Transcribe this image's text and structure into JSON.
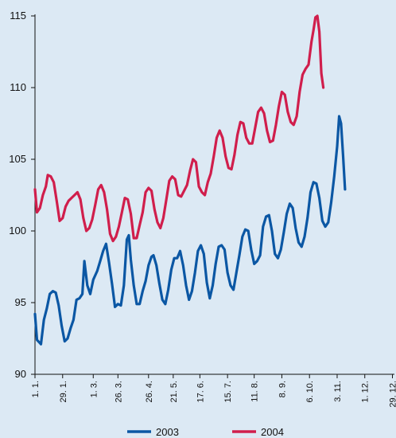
{
  "chart_data": {
    "type": "line",
    "title": "",
    "xlabel": "",
    "ylabel": "",
    "ylim": [
      90,
      115
    ],
    "yticks": [
      90,
      95,
      100,
      105,
      110,
      115
    ],
    "x_tick_labels": [
      "1. 1.",
      "29. 1.",
      "1. 3.",
      "26. 3.",
      "26. 4.",
      "21. 5.",
      "17. 6.",
      "15. 7.",
      "11. 8.",
      "8. 9.",
      "6. 10.",
      "3. 11.",
      "1. 12.",
      "29. 12."
    ],
    "x_tick_days": [
      1,
      29,
      60,
      85,
      116,
      141,
      168,
      196,
      223,
      251,
      279,
      307,
      335,
      363
    ],
    "xlim": [
      1,
      365
    ],
    "grid": false,
    "legend_position": "bottom-center",
    "series": [
      {
        "name": "2003",
        "color": "#0b57a4",
        "points": [
          [
            1,
            94.2
          ],
          [
            3,
            92.4
          ],
          [
            7,
            92.1
          ],
          [
            10,
            93.8
          ],
          [
            13,
            94.6
          ],
          [
            16,
            95.6
          ],
          [
            19,
            95.8
          ],
          [
            22,
            95.7
          ],
          [
            25,
            94.8
          ],
          [
            28,
            93.4
          ],
          [
            31,
            92.3
          ],
          [
            34,
            92.5
          ],
          [
            37,
            93.2
          ],
          [
            40,
            93.8
          ],
          [
            43,
            95.2
          ],
          [
            46,
            95.3
          ],
          [
            49,
            95.6
          ],
          [
            51,
            97.9
          ],
          [
            54,
            96.2
          ],
          [
            57,
            95.6
          ],
          [
            60,
            96.6
          ],
          [
            64,
            97.2
          ],
          [
            67,
            97.9
          ],
          [
            70,
            98.6
          ],
          [
            73,
            99.1
          ],
          [
            76,
            97.8
          ],
          [
            79,
            96.3
          ],
          [
            82,
            94.7
          ],
          [
            85,
            94.9
          ],
          [
            88,
            94.8
          ],
          [
            91,
            96.2
          ],
          [
            94,
            99.4
          ],
          [
            96,
            99.7
          ],
          [
            98,
            98.0
          ],
          [
            101,
            96.2
          ],
          [
            104,
            94.9
          ],
          [
            107,
            94.9
          ],
          [
            110,
            95.8
          ],
          [
            113,
            96.5
          ],
          [
            116,
            97.6
          ],
          [
            119,
            98.2
          ],
          [
            121,
            98.3
          ],
          [
            124,
            97.6
          ],
          [
            127,
            96.3
          ],
          [
            130,
            95.2
          ],
          [
            133,
            94.9
          ],
          [
            136,
            95.9
          ],
          [
            139,
            97.3
          ],
          [
            142,
            98.1
          ],
          [
            145,
            98.1
          ],
          [
            148,
            98.6
          ],
          [
            151,
            97.6
          ],
          [
            154,
            96.2
          ],
          [
            157,
            95.2
          ],
          [
            160,
            95.8
          ],
          [
            163,
            97.1
          ],
          [
            166,
            98.6
          ],
          [
            169,
            99.0
          ],
          [
            172,
            98.4
          ],
          [
            175,
            96.4
          ],
          [
            178,
            95.3
          ],
          [
            181,
            96.2
          ],
          [
            184,
            97.7
          ],
          [
            187,
            98.9
          ],
          [
            190,
            99.0
          ],
          [
            193,
            98.7
          ],
          [
            196,
            97.1
          ],
          [
            199,
            96.2
          ],
          [
            202,
            95.9
          ],
          [
            205,
            97.1
          ],
          [
            208,
            98.3
          ],
          [
            211,
            99.6
          ],
          [
            214,
            100.1
          ],
          [
            217,
            100.0
          ],
          [
            220,
            98.7
          ],
          [
            223,
            97.7
          ],
          [
            226,
            97.9
          ],
          [
            229,
            98.3
          ],
          [
            232,
            100.3
          ],
          [
            235,
            101.0
          ],
          [
            238,
            101.1
          ],
          [
            241,
            100.0
          ],
          [
            244,
            98.4
          ],
          [
            247,
            98.1
          ],
          [
            250,
            98.7
          ],
          [
            253,
            99.9
          ],
          [
            256,
            101.2
          ],
          [
            259,
            101.9
          ],
          [
            262,
            101.6
          ],
          [
            265,
            100.2
          ],
          [
            268,
            99.2
          ],
          [
            271,
            98.9
          ],
          [
            274,
            99.6
          ],
          [
            277,
            100.9
          ],
          [
            280,
            102.7
          ],
          [
            283,
            103.4
          ],
          [
            286,
            103.3
          ],
          [
            289,
            102.3
          ],
          [
            292,
            100.7
          ],
          [
            295,
            100.3
          ],
          [
            298,
            100.6
          ],
          [
            301,
            102.0
          ],
          [
            304,
            103.8
          ],
          [
            307,
            105.9
          ],
          [
            309,
            108.0
          ],
          [
            311,
            107.5
          ],
          [
            313,
            105.3
          ],
          [
            315,
            102.9
          ]
        ]
      },
      {
        "name": "2004",
        "color": "#d01e4c",
        "points": [
          [
            1,
            102.9
          ],
          [
            3,
            101.3
          ],
          [
            6,
            101.6
          ],
          [
            9,
            102.5
          ],
          [
            12,
            103.1
          ],
          [
            14,
            103.9
          ],
          [
            17,
            103.8
          ],
          [
            20,
            103.4
          ],
          [
            23,
            102.1
          ],
          [
            26,
            100.7
          ],
          [
            29,
            100.9
          ],
          [
            32,
            101.7
          ],
          [
            35,
            102.1
          ],
          [
            38,
            102.3
          ],
          [
            41,
            102.5
          ],
          [
            44,
            102.7
          ],
          [
            47,
            102.2
          ],
          [
            50,
            100.9
          ],
          [
            53,
            100.0
          ],
          [
            56,
            100.2
          ],
          [
            59,
            100.8
          ],
          [
            62,
            101.8
          ],
          [
            65,
            102.9
          ],
          [
            68,
            103.2
          ],
          [
            71,
            102.7
          ],
          [
            74,
            101.5
          ],
          [
            77,
            99.8
          ],
          [
            80,
            99.3
          ],
          [
            83,
            99.6
          ],
          [
            86,
            100.3
          ],
          [
            89,
            101.3
          ],
          [
            92,
            102.3
          ],
          [
            95,
            102.2
          ],
          [
            98,
            101.2
          ],
          [
            101,
            99.5
          ],
          [
            104,
            99.5
          ],
          [
            107,
            100.4
          ],
          [
            110,
            101.3
          ],
          [
            113,
            102.7
          ],
          [
            116,
            103.0
          ],
          [
            119,
            102.8
          ],
          [
            122,
            101.5
          ],
          [
            125,
            100.6
          ],
          [
            128,
            100.2
          ],
          [
            131,
            100.9
          ],
          [
            134,
            102.2
          ],
          [
            137,
            103.5
          ],
          [
            140,
            103.8
          ],
          [
            143,
            103.6
          ],
          [
            146,
            102.5
          ],
          [
            149,
            102.4
          ],
          [
            152,
            102.8
          ],
          [
            155,
            103.2
          ],
          [
            158,
            104.2
          ],
          [
            161,
            105.0
          ],
          [
            164,
            104.8
          ],
          [
            167,
            103.1
          ],
          [
            170,
            102.7
          ],
          [
            173,
            102.5
          ],
          [
            176,
            103.4
          ],
          [
            179,
            104.0
          ],
          [
            182,
            105.2
          ],
          [
            185,
            106.5
          ],
          [
            188,
            107.0
          ],
          [
            191,
            106.5
          ],
          [
            194,
            105.2
          ],
          [
            197,
            104.4
          ],
          [
            200,
            104.3
          ],
          [
            203,
            105.3
          ],
          [
            206,
            106.7
          ],
          [
            209,
            107.6
          ],
          [
            212,
            107.5
          ],
          [
            215,
            106.5
          ],
          [
            218,
            106.1
          ],
          [
            221,
            106.1
          ],
          [
            224,
            107.2
          ],
          [
            227,
            108.3
          ],
          [
            230,
            108.6
          ],
          [
            233,
            108.2
          ],
          [
            236,
            107.0
          ],
          [
            239,
            106.2
          ],
          [
            242,
            106.3
          ],
          [
            245,
            107.4
          ],
          [
            248,
            108.7
          ],
          [
            251,
            109.7
          ],
          [
            254,
            109.5
          ],
          [
            257,
            108.3
          ],
          [
            260,
            107.6
          ],
          [
            263,
            107.4
          ],
          [
            266,
            108.0
          ],
          [
            269,
            109.7
          ],
          [
            272,
            110.9
          ],
          [
            275,
            111.3
          ],
          [
            278,
            111.6
          ],
          [
            281,
            113.2
          ],
          [
            283,
            114.0
          ],
          [
            285,
            114.9
          ],
          [
            287,
            115.0
          ],
          [
            289,
            113.9
          ],
          [
            291,
            111.0
          ],
          [
            293,
            110.0
          ]
        ]
      }
    ]
  }
}
